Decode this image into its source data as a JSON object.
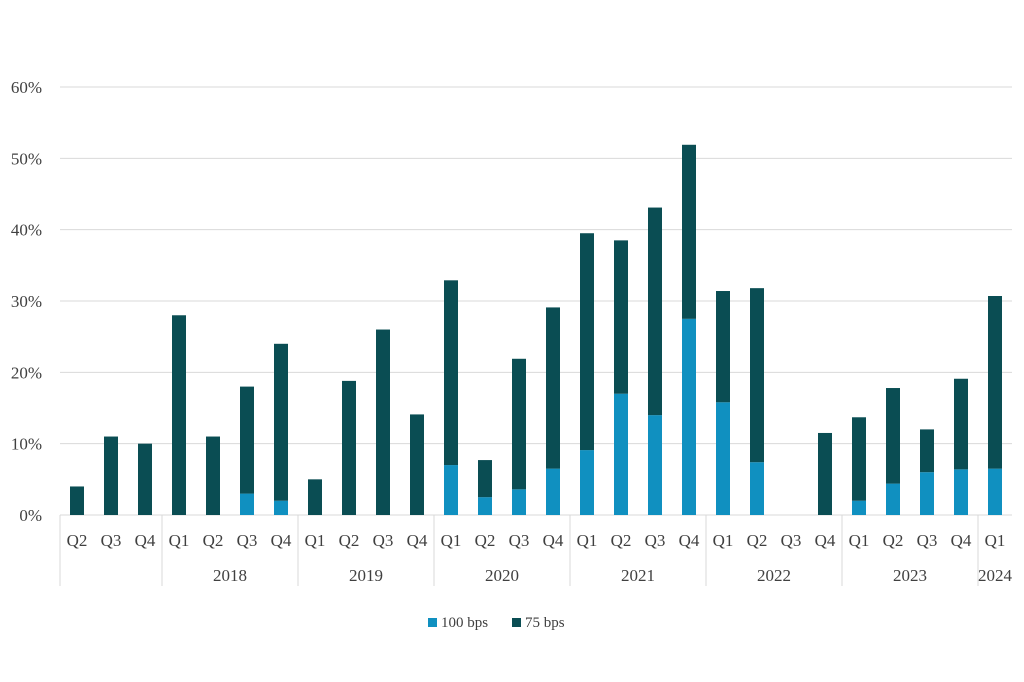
{
  "chart_data": {
    "type": "bar",
    "stacked": true,
    "title": "",
    "xlabel": "",
    "ylabel": "",
    "ylim": [
      0,
      60
    ],
    "y_tick_labels": [
      "0%",
      "10%",
      "20%",
      "30%",
      "40%",
      "50%",
      "60%"
    ],
    "y_ticks": [
      0,
      10,
      20,
      30,
      40,
      50,
      60
    ],
    "grid": true,
    "legend_position": "bottom",
    "categories": [
      "Q2",
      "Q3",
      "Q4",
      "Q1",
      "Q2",
      "Q3",
      "Q4",
      "Q1",
      "Q2",
      "Q3",
      "Q4",
      "Q1",
      "Q2",
      "Q3",
      "Q4",
      "Q1",
      "Q2",
      "Q3",
      "Q4",
      "Q1",
      "Q2",
      "Q3",
      "Q4",
      "Q1",
      "Q2",
      "Q3",
      "Q4",
      "Q1"
    ],
    "year_groups": [
      {
        "label": "",
        "count": 3
      },
      {
        "label": "2018",
        "count": 4
      },
      {
        "label": "2019",
        "count": 4
      },
      {
        "label": "2020",
        "count": 4
      },
      {
        "label": "2021",
        "count": 4
      },
      {
        "label": "2022",
        "count": 4
      },
      {
        "label": "2023",
        "count": 4
      },
      {
        "label": "2024",
        "count": 1
      }
    ],
    "series": [
      {
        "name": "100 bps",
        "color": "#1090c0",
        "values": [
          0,
          0,
          0,
          0,
          0,
          3,
          2,
          0,
          0,
          0,
          0,
          7,
          2.5,
          3.6,
          6.5,
          9.1,
          17,
          14,
          27.5,
          15.8,
          7.4,
          0,
          0,
          2,
          4.4,
          6,
          6.4,
          6.5
        ]
      },
      {
        "name": "75 bps",
        "color": "#0a4d53",
        "values": [
          4,
          11,
          10,
          28,
          11,
          15,
          22,
          5,
          18.8,
          26,
          14.1,
          25.9,
          5.2,
          18.3,
          22.6,
          30.4,
          21.5,
          29.1,
          24.4,
          15.6,
          24.4,
          0,
          11.5,
          11.7,
          13.4,
          6,
          12.7,
          24.2
        ]
      }
    ]
  }
}
